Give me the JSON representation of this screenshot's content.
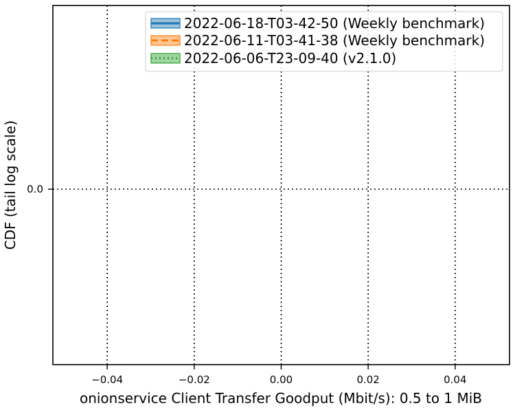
{
  "chart_data": {
    "type": "line",
    "title": "",
    "xlabel": "onionservice Client Transfer Goodput (Mbit/s): 0.5 to 1 MiB",
    "ylabel": "CDF (tail log scale)",
    "xlim": [
      -0.0525,
      0.0525
    ],
    "xticks": [
      -0.04,
      -0.02,
      0.0,
      0.02,
      0.04
    ],
    "xtick_labels": [
      "−0.04",
      "−0.02",
      "0.00",
      "0.02",
      "0.04"
    ],
    "yticks": [
      0.0
    ],
    "ytick_labels": [
      "0.0"
    ],
    "grid": true,
    "grid_style": "dotted",
    "legend_position": "top-right",
    "series": [
      {
        "name": "2022-06-18-T03-42-50 (Weekly benchmark)",
        "color": "#1f77b4",
        "line_style": "solid",
        "x": [],
        "y": []
      },
      {
        "name": "2022-06-11-T03-41-38 (Weekly benchmark)",
        "color": "#ff7f0e",
        "line_style": "dashed",
        "x": [],
        "y": []
      },
      {
        "name": "2022-06-06-T23-09-40 (v2.1.0)",
        "color": "#2ca02c",
        "line_style": "dotted",
        "x": [],
        "y": []
      }
    ]
  }
}
